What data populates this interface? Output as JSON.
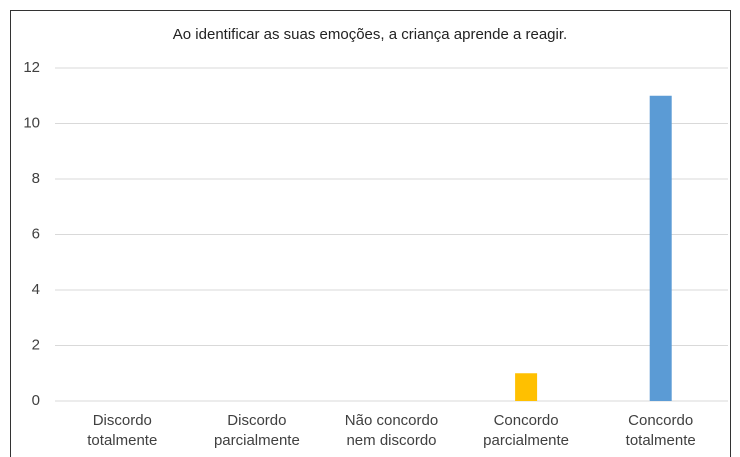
{
  "chart_data": {
    "type": "bar",
    "title": "Ao identificar as suas emoções, a criança aprende a reagir.",
    "categories": [
      "Discordo totalmente",
      "Discordo parcialmente",
      "Não concordo nem discordo",
      "Concordo parcialmente",
      "Concordo totalmente"
    ],
    "values": [
      0,
      0,
      0,
      1,
      11
    ],
    "colors": [
      "#5b9bd5",
      "#5b9bd5",
      "#5b9bd5",
      "#ffc000",
      "#5b9bd5"
    ],
    "ylim": [
      0,
      12
    ],
    "yticks": [
      0,
      2,
      4,
      6,
      8,
      10,
      12
    ],
    "grid": true
  }
}
